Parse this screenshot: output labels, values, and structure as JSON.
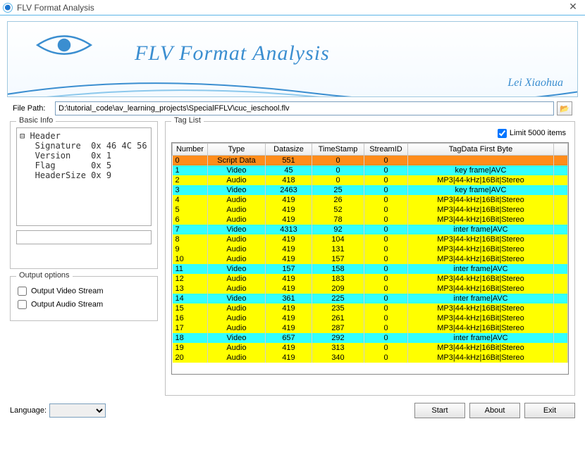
{
  "window": {
    "title": "FLV Format Analysis",
    "close": "✕"
  },
  "banner": {
    "heading": "FLV Format Analysis",
    "author": "Lei Xiaohua",
    "accent_color": "#3b8ed0"
  },
  "filepath": {
    "label": "File Path:",
    "value": "D:\\tutorial_code\\av_learning_projects\\SpecialFFLV\\cuc_ieschool.flv"
  },
  "basic_info": {
    "title": "Basic Info",
    "header_label": "Header",
    "rows": [
      {
        "name": "Signature",
        "value": "0x 46 4C 56"
      },
      {
        "name": "Version",
        "value": "0x 1"
      },
      {
        "name": "Flag",
        "value": "0x 5"
      },
      {
        "name": "HeaderSize",
        "value": "0x 9"
      }
    ]
  },
  "output": {
    "title": "Output options",
    "video": "Output Video Stream",
    "audio": "Output Audio Stream"
  },
  "taglist": {
    "title": "Tag List",
    "limit_label": "Limit 5000 items",
    "limit_checked": true,
    "columns": [
      "Number",
      "Type",
      "Datasize",
      "TimeStamp",
      "StreamID",
      "TagData First Byte"
    ],
    "row_colors": {
      "script": "#ff8c1a",
      "video": "#33ffff",
      "audio": "#ffff00"
    },
    "rows": [
      {
        "n": 0,
        "type": "Script Data",
        "ds": 551,
        "ts": 0,
        "sid": 0,
        "fb": "",
        "kind": "script"
      },
      {
        "n": 1,
        "type": "Video",
        "ds": 45,
        "ts": 0,
        "sid": 0,
        "fb": "key frame|AVC",
        "kind": "video"
      },
      {
        "n": 2,
        "type": "Audio",
        "ds": 418,
        "ts": 0,
        "sid": 0,
        "fb": "MP3|44-kHz|16Bit|Stereo",
        "kind": "audio"
      },
      {
        "n": 3,
        "type": "Video",
        "ds": 2463,
        "ts": 25,
        "sid": 0,
        "fb": "key frame|AVC",
        "kind": "video"
      },
      {
        "n": 4,
        "type": "Audio",
        "ds": 419,
        "ts": 26,
        "sid": 0,
        "fb": "MP3|44-kHz|16Bit|Stereo",
        "kind": "audio"
      },
      {
        "n": 5,
        "type": "Audio",
        "ds": 419,
        "ts": 52,
        "sid": 0,
        "fb": "MP3|44-kHz|16Bit|Stereo",
        "kind": "audio"
      },
      {
        "n": 6,
        "type": "Audio",
        "ds": 419,
        "ts": 78,
        "sid": 0,
        "fb": "MP3|44-kHz|16Bit|Stereo",
        "kind": "audio"
      },
      {
        "n": 7,
        "type": "Video",
        "ds": 4313,
        "ts": 92,
        "sid": 0,
        "fb": "inter frame|AVC",
        "kind": "video"
      },
      {
        "n": 8,
        "type": "Audio",
        "ds": 419,
        "ts": 104,
        "sid": 0,
        "fb": "MP3|44-kHz|16Bit|Stereo",
        "kind": "audio"
      },
      {
        "n": 9,
        "type": "Audio",
        "ds": 419,
        "ts": 131,
        "sid": 0,
        "fb": "MP3|44-kHz|16Bit|Stereo",
        "kind": "audio"
      },
      {
        "n": 10,
        "type": "Audio",
        "ds": 419,
        "ts": 157,
        "sid": 0,
        "fb": "MP3|44-kHz|16Bit|Stereo",
        "kind": "audio"
      },
      {
        "n": 11,
        "type": "Video",
        "ds": 157,
        "ts": 158,
        "sid": 0,
        "fb": "inter frame|AVC",
        "kind": "video"
      },
      {
        "n": 12,
        "type": "Audio",
        "ds": 419,
        "ts": 183,
        "sid": 0,
        "fb": "MP3|44-kHz|16Bit|Stereo",
        "kind": "audio"
      },
      {
        "n": 13,
        "type": "Audio",
        "ds": 419,
        "ts": 209,
        "sid": 0,
        "fb": "MP3|44-kHz|16Bit|Stereo",
        "kind": "audio"
      },
      {
        "n": 14,
        "type": "Video",
        "ds": 361,
        "ts": 225,
        "sid": 0,
        "fb": "inter frame|AVC",
        "kind": "video"
      },
      {
        "n": 15,
        "type": "Audio",
        "ds": 419,
        "ts": 235,
        "sid": 0,
        "fb": "MP3|44-kHz|16Bit|Stereo",
        "kind": "audio"
      },
      {
        "n": 16,
        "type": "Audio",
        "ds": 419,
        "ts": 261,
        "sid": 0,
        "fb": "MP3|44-kHz|16Bit|Stereo",
        "kind": "audio"
      },
      {
        "n": 17,
        "type": "Audio",
        "ds": 419,
        "ts": 287,
        "sid": 0,
        "fb": "MP3|44-kHz|16Bit|Stereo",
        "kind": "audio"
      },
      {
        "n": 18,
        "type": "Video",
        "ds": 657,
        "ts": 292,
        "sid": 0,
        "fb": "inter frame|AVC",
        "kind": "video"
      },
      {
        "n": 19,
        "type": "Audio",
        "ds": 419,
        "ts": 313,
        "sid": 0,
        "fb": "MP3|44-kHz|16Bit|Stereo",
        "kind": "audio"
      },
      {
        "n": 20,
        "type": "Audio",
        "ds": 419,
        "ts": 340,
        "sid": 0,
        "fb": "MP3|44-kHz|16Bit|Stereo",
        "kind": "audio"
      }
    ]
  },
  "footer": {
    "language_label": "Language:",
    "start": "Start",
    "about": "About",
    "exit": "Exit"
  }
}
